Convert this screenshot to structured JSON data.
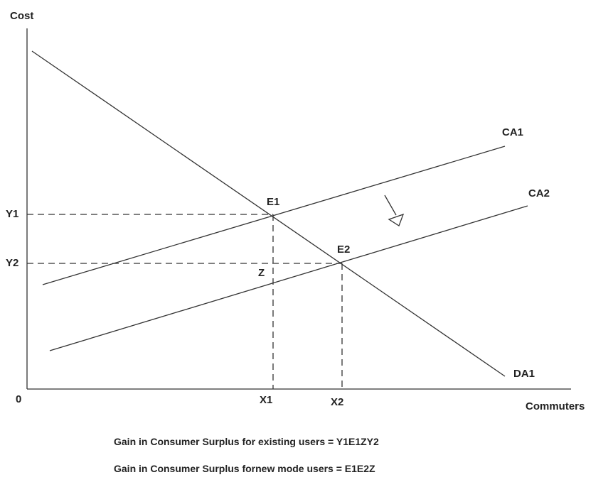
{
  "axes": {
    "y_label": "Cost",
    "x_label": "Commuters",
    "origin": "0"
  },
  "curves": {
    "ca1": "CA1",
    "ca2": "CA2",
    "da1": "DA1"
  },
  "points": {
    "e1": "E1",
    "e2": "E2",
    "z": "Z"
  },
  "ticks": {
    "y1": "Y1",
    "y2": "Y2",
    "x1": "X1",
    "x2": "X2"
  },
  "captions": {
    "existing": "Gain in Consumer Surplus for existing users = Y1E1ZY2",
    "new_mode": "Gain in Consumer Surplus fornew mode users = E1E2Z"
  },
  "shift_arrow_icon": "arrow-down-right-icon"
}
